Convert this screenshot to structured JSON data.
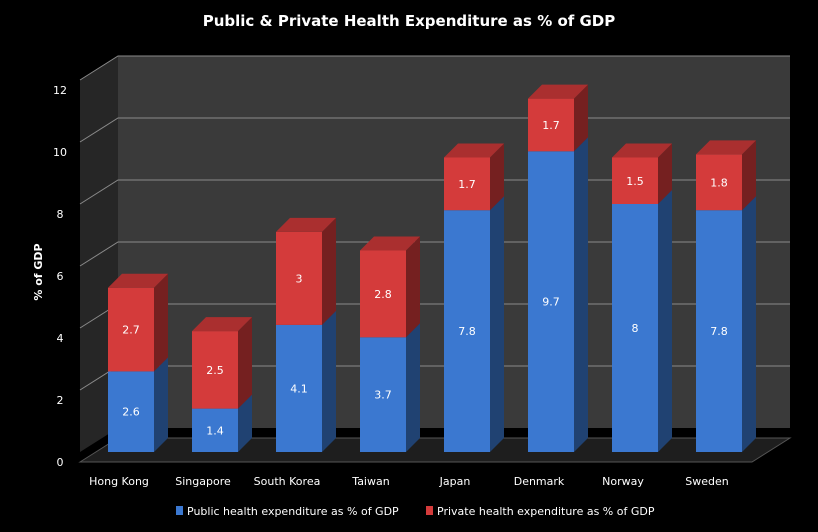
{
  "chart_data": {
    "type": "bar",
    "stacked": true,
    "three_d": true,
    "title": "Public & Private Health Expenditure as % of GDP",
    "xlabel": "",
    "ylabel": "% of GDP",
    "ylim": [
      0,
      12
    ],
    "yticks": [
      0,
      2,
      4,
      6,
      8,
      10,
      12
    ],
    "grid": true,
    "legend_position": "bottom",
    "categories": [
      "Hong Kong",
      "Singapore",
      "South Korea",
      "Taiwan",
      "Japan",
      "Denmark",
      "Norway",
      "Sweden"
    ],
    "series": [
      {
        "name": "Public health expenditure as % of GDP",
        "color": "#3b78d0",
        "values": [
          2.6,
          1.4,
          4.1,
          3.7,
          7.8,
          9.7,
          8,
          7.8
        ]
      },
      {
        "name": "Private health expenditure as % of GDP",
        "color": "#d43b3b",
        "values": [
          2.7,
          2.5,
          3,
          2.8,
          1.7,
          1.7,
          1.5,
          1.8
        ]
      }
    ]
  }
}
